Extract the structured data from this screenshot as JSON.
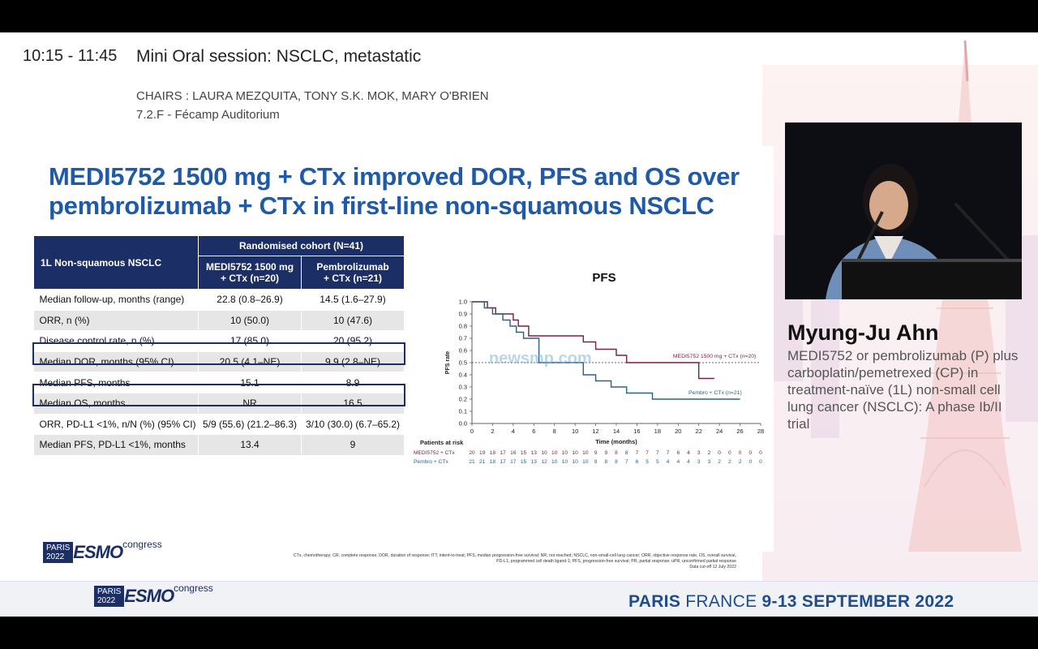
{
  "session": {
    "time": "10:15 - 11:45",
    "title": "Mini Oral session: NSCLC, metastatic",
    "chairs": "CHAIRS : LAURA MEZQUITA, TONY S.K. MOK, MARY O'BRIEN",
    "room": "7.2.F - Fécamp Auditorium"
  },
  "slide": {
    "title_line1": "MEDI5752 1500 mg + CTx improved DOR, PFS and OS over",
    "title_line2": "pembrolizumab + CTx in first-line non-squamous NSCLC",
    "table": {
      "corner": "1L Non-squamous NSCLC",
      "group_header": "Randomised cohort (N=41)",
      "col1_line1": "MEDI5752 1500 mg",
      "col1_line2": "+ CTx (n=20)",
      "col2_line1": "Pembrolizumab",
      "col2_line2": "+ CTx (n=21)",
      "rows": [
        {
          "label": "Median follow-up, months (range)",
          "a": "22.8 (0.8–26.9)",
          "b": "14.5 (1.6–27.9)"
        },
        {
          "label": "ORR, n (%)",
          "a": "10 (50.0)",
          "b": "10 (47.6)"
        },
        {
          "label": "Disease control rate, n (%)",
          "a": "17 (85.0)",
          "b": "20 (95.2)"
        },
        {
          "label": "Median DOR, months (95% CI)",
          "a": "20.5 (4.1–NE)",
          "b": "9.9 (2.8–NE)"
        },
        {
          "label": "Median PFS, months",
          "a": "15.1",
          "b": "8.9"
        },
        {
          "label": "Median OS, months",
          "a": "NR",
          "b": "16.5"
        },
        {
          "label": "ORR, PD-L1 <1%, n/N (%) (95% CI)",
          "a": "5/9 (55.6) (21.2–86.3)",
          "b": "3/10 (30.0) (6.7–65.2)"
        },
        {
          "label": "Median PFS, PD-L1 <1%, months",
          "a": "13.4",
          "b": "9"
        }
      ]
    },
    "footnote_line1": "CTx, chemotherapy; CR, complete response; DOR, duration of response; ITT, intent-to-treat; PFS, median progression-free survival; NR, not reached; NSCLC, non-small-cell lung cancer; ORR, objective response rate, OS, overall survival,",
    "footnote_line2": "PD-L1, programmed cell death ligand-1; PFS, progression-free survival; PR, partial response; uPR, unconfirmed partial response",
    "footnote_line3": "Data cut-off 12 July 2022",
    "watermark": "newsmp.com"
  },
  "chart_data": {
    "type": "line",
    "title": "PFS",
    "xlabel": "Time (months)",
    "ylabel": "PFS rate",
    "xlim": [
      0,
      28
    ],
    "ylim": [
      0,
      1.0
    ],
    "x_ticks": [
      0,
      2,
      4,
      6,
      8,
      10,
      12,
      14,
      16,
      18,
      20,
      22,
      24,
      26,
      28
    ],
    "y_ticks": [
      0.0,
      0.1,
      0.2,
      0.3,
      0.4,
      0.5,
      0.6,
      0.7,
      0.8,
      0.9,
      1.0
    ],
    "reference_line": 0.5,
    "series": [
      {
        "name": "MEDI5752 1500 mg + CTx (n=20)",
        "color": "#7a1f45",
        "points": [
          [
            0,
            1.0
          ],
          [
            1.5,
            1.0
          ],
          [
            1.5,
            0.95
          ],
          [
            2.3,
            0.95
          ],
          [
            2.3,
            0.9
          ],
          [
            4,
            0.9
          ],
          [
            4,
            0.85
          ],
          [
            4.5,
            0.85
          ],
          [
            4.5,
            0.8
          ],
          [
            5.5,
            0.8
          ],
          [
            5.5,
            0.72
          ],
          [
            10.8,
            0.72
          ],
          [
            10.8,
            0.67
          ],
          [
            12,
            0.67
          ],
          [
            12,
            0.61
          ],
          [
            14,
            0.61
          ],
          [
            14,
            0.56
          ],
          [
            15,
            0.56
          ],
          [
            15,
            0.5
          ],
          [
            22,
            0.5
          ],
          [
            22,
            0.37
          ],
          [
            23.5,
            0.37
          ]
        ]
      },
      {
        "name": "Pembro + CTx (n=21)",
        "color": "#2a6286",
        "points": [
          [
            0,
            1.0
          ],
          [
            1.2,
            1.0
          ],
          [
            1.2,
            0.95
          ],
          [
            2,
            0.95
          ],
          [
            2,
            0.9
          ],
          [
            3,
            0.9
          ],
          [
            3,
            0.85
          ],
          [
            3.7,
            0.85
          ],
          [
            3.7,
            0.8
          ],
          [
            4.3,
            0.8
          ],
          [
            4.3,
            0.75
          ],
          [
            5,
            0.75
          ],
          [
            5,
            0.7
          ],
          [
            6.5,
            0.7
          ],
          [
            6.5,
            0.5
          ],
          [
            10.8,
            0.5
          ],
          [
            10.8,
            0.4
          ],
          [
            12,
            0.4
          ],
          [
            12,
            0.35
          ],
          [
            13.5,
            0.35
          ],
          [
            13.5,
            0.3
          ],
          [
            15,
            0.3
          ],
          [
            15,
            0.25
          ],
          [
            17.5,
            0.25
          ],
          [
            17.5,
            0.2
          ],
          [
            26,
            0.2
          ]
        ]
      }
    ],
    "risk_table": {
      "title": "Patients at risk",
      "rows": [
        {
          "label": "MEDI5752 + CTx",
          "counts": [
            20,
            19,
            18,
            17,
            16,
            15,
            13,
            10,
            10,
            10,
            10,
            10,
            9,
            9,
            8,
            8,
            7,
            7,
            7,
            7,
            6,
            4,
            3,
            2,
            0,
            0,
            0,
            0,
            0
          ]
        },
        {
          "label": "Pembro + CTx",
          "counts": [
            21,
            21,
            18,
            17,
            17,
            15,
            13,
            12,
            10,
            10,
            10,
            10,
            9,
            8,
            8,
            7,
            6,
            5,
            5,
            4,
            4,
            4,
            3,
            3,
            2,
            2,
            2,
            0,
            0
          ]
        }
      ]
    }
  },
  "speaker": {
    "name": "Myung-Ju Ahn",
    "talk": "MEDI5752 or pembrolizumab (P) plus carboplatin/pemetrexed (CP) in treatment-naïve (1L) non-small cell lung cancer (NSCLC): A phase Ib/II trial"
  },
  "branding": {
    "logo_city": "PARIS",
    "logo_year": "2022",
    "logo_esmo": "ESMO",
    "logo_congress": "congress",
    "location_bold": "PARIS",
    "location_thin": "FRANCE",
    "dates": "9-13 SEPTEMBER 2022"
  },
  "colors": {
    "title_blue": "#1f5aa8",
    "table_navy": "#1b2f66",
    "medi_series": "#7a1f45",
    "pembro_series": "#2a6286",
    "esmo_orange": "#d88b17"
  }
}
